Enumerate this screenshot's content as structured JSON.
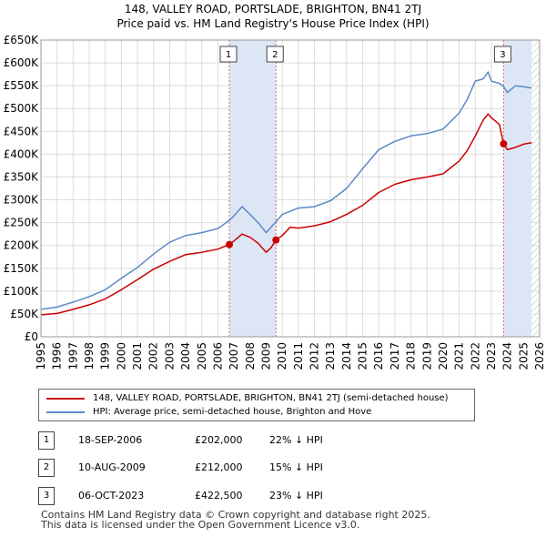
{
  "title_line1": "148, VALLEY ROAD, PORTSLADE, BRIGHTON, BN41 2TJ",
  "title_line2": "Price paid vs. HM Land Registry's House Price Index (HPI)",
  "colors": {
    "property": "#cc0000",
    "hpi": "#5b8ac6",
    "shade": "#dde6f5",
    "grid": "#dddddd",
    "vline": "#e06666"
  },
  "legend": {
    "property_label": "148, VALLEY ROAD, PORTSLADE, BRIGHTON, BN41 2TJ (semi-detached house)",
    "hpi_label": "HPI: Average price, semi-detached house, Brighton and Hove"
  },
  "sales": [
    {
      "num": "1",
      "date": "18-SEP-2006",
      "price": "£202,000",
      "hpi": "22% ↓ HPI"
    },
    {
      "num": "2",
      "date": "10-AUG-2009",
      "price": "£212,000",
      "hpi": "15% ↓ HPI"
    },
    {
      "num": "3",
      "date": "06-OCT-2023",
      "price": "£422,500",
      "hpi": "23% ↓ HPI"
    }
  ],
  "footer_line1": "Contains HM Land Registry data © Crown copyright and database right 2025.",
  "footer_line2": "This data is licensed under the Open Government Licence v3.0.",
  "chart_data": {
    "type": "line",
    "title": "148, VALLEY ROAD, PORTSLADE, BRIGHTON, BN41 2TJ — Price paid vs. HM Land Registry's House Price Index (HPI)",
    "xlabel": "",
    "ylabel": "",
    "xlim": [
      1995,
      2026
    ],
    "ylim": [
      0,
      650000
    ],
    "xticks": [
      1995,
      1996,
      1997,
      1998,
      1999,
      2000,
      2001,
      2002,
      2003,
      2004,
      2005,
      2006,
      2007,
      2008,
      2009,
      2010,
      2011,
      2012,
      2013,
      2014,
      2015,
      2016,
      2017,
      2018,
      2019,
      2020,
      2021,
      2022,
      2023,
      2024,
      2025,
      2026
    ],
    "yticks": [
      0,
      50000,
      100000,
      150000,
      200000,
      250000,
      300000,
      350000,
      400000,
      450000,
      500000,
      550000,
      600000,
      650000
    ],
    "ytick_labels": [
      "£0",
      "£50K",
      "£100K",
      "£150K",
      "£200K",
      "£250K",
      "£300K",
      "£350K",
      "£400K",
      "£450K",
      "£500K",
      "£550K",
      "£600K",
      "£650K"
    ],
    "grid": true,
    "shaded_regions": [
      {
        "from": 2006.71,
        "to": 2009.61
      },
      {
        "from": 2023.76,
        "to": 2025.5
      }
    ],
    "future_hatch_from": 2025.5,
    "sale_markers": [
      {
        "label": "1",
        "x": 2006.71,
        "y": 202000
      },
      {
        "label": "2",
        "x": 2009.61,
        "y": 212000
      },
      {
        "label": "3",
        "x": 2023.76,
        "y": 422500
      }
    ],
    "series": [
      {
        "name": "148, VALLEY ROAD, PORTSLADE, BRIGHTON, BN41 2TJ (semi-detached house)",
        "x": [
          1995.0,
          1996.0,
          1997.0,
          1998.0,
          1999.0,
          2000.0,
          2001.0,
          2002.0,
          2003.0,
          2004.0,
          2005.0,
          2006.0,
          2006.71,
          2007.0,
          2007.5,
          2008.0,
          2008.5,
          2009.0,
          2009.3,
          2009.61,
          2010.0,
          2010.5,
          2011.0,
          2012.0,
          2013.0,
          2014.0,
          2015.0,
          2016.0,
          2017.0,
          2018.0,
          2019.0,
          2020.0,
          2021.0,
          2021.5,
          2022.0,
          2022.5,
          2022.8,
          2023.0,
          2023.5,
          2023.76,
          2024.0,
          2024.5,
          2025.0,
          2025.5
        ],
        "y": [
          48000,
          51000,
          60000,
          70000,
          83000,
          103000,
          125000,
          148000,
          165000,
          180000,
          185000,
          192000,
          202000,
          210000,
          225000,
          218000,
          205000,
          185000,
          195000,
          212000,
          222000,
          240000,
          238000,
          243000,
          252000,
          268000,
          288000,
          316000,
          334000,
          344000,
          350000,
          357000,
          385000,
          408000,
          440000,
          475000,
          488000,
          480000,
          465000,
          422500,
          410000,
          415000,
          422000,
          425000
        ]
      },
      {
        "name": "HPI: Average price, semi-detached house, Brighton and Hove",
        "x": [
          1995.0,
          1996.0,
          1997.0,
          1998.0,
          1999.0,
          2000.0,
          2001.0,
          2002.0,
          2003.0,
          2004.0,
          2005.0,
          2006.0,
          2006.71,
          2007.0,
          2007.5,
          2008.0,
          2008.5,
          2009.0,
          2009.3,
          2009.61,
          2010.0,
          2011.0,
          2012.0,
          2013.0,
          2014.0,
          2015.0,
          2016.0,
          2017.0,
          2018.0,
          2019.0,
          2020.0,
          2021.0,
          2021.5,
          2022.0,
          2022.5,
          2022.8,
          2023.0,
          2023.5,
          2023.76,
          2024.0,
          2024.5,
          2025.0,
          2025.5
        ],
        "y": [
          60000,
          65000,
          76000,
          88000,
          103000,
          128000,
          152000,
          181000,
          207000,
          222000,
          228000,
          237000,
          255000,
          265000,
          285000,
          268000,
          250000,
          228000,
          240000,
          252000,
          268000,
          282000,
          285000,
          298000,
          325000,
          368000,
          410000,
          428000,
          440000,
          445000,
          455000,
          490000,
          520000,
          560000,
          565000,
          580000,
          560000,
          555000,
          548000,
          535000,
          550000,
          548000,
          545000
        ]
      }
    ]
  }
}
